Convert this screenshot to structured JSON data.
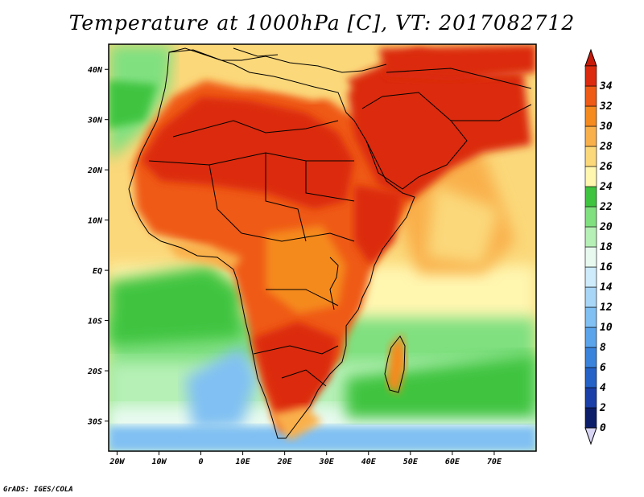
{
  "title": "Temperature at 1000hPa [C], VT: 2017082712",
  "credit": "GrADS: IGES/COLA",
  "axes": {
    "lon_labels": [
      {
        "value": -20,
        "label": "20W"
      },
      {
        "value": -10,
        "label": "10W"
      },
      {
        "value": 0,
        "label": "0"
      },
      {
        "value": 10,
        "label": "10E"
      },
      {
        "value": 20,
        "label": "20E"
      },
      {
        "value": 30,
        "label": "30E"
      },
      {
        "value": 40,
        "label": "40E"
      },
      {
        "value": 50,
        "label": "50E"
      },
      {
        "value": 60,
        "label": "60E"
      },
      {
        "value": 70,
        "label": "70E"
      }
    ],
    "lat_labels": [
      {
        "value": 40,
        "label": "40N"
      },
      {
        "value": 30,
        "label": "30N"
      },
      {
        "value": 20,
        "label": "20N"
      },
      {
        "value": 10,
        "label": "10N"
      },
      {
        "value": 0,
        "label": "EQ"
      },
      {
        "value": -10,
        "label": "10S"
      },
      {
        "value": -20,
        "label": "20S"
      },
      {
        "value": -30,
        "label": "30S"
      }
    ],
    "lon_range": [
      -22,
      80
    ],
    "lat_range": [
      -36,
      45
    ]
  },
  "colorbar": {
    "levels": [
      "0",
      "2",
      "4",
      "6",
      "8",
      "10",
      "12",
      "14",
      "16",
      "18",
      "20",
      "22",
      "24",
      "26",
      "28",
      "30",
      "32",
      "34"
    ],
    "colors": [
      "#0c1d6a",
      "#1a3fa8",
      "#2462c8",
      "#3a83dc",
      "#5aa4ec",
      "#80c0f3",
      "#a8d6f7",
      "#cdebfa",
      "#e8faf0",
      "#b6f0b6",
      "#80e080",
      "#3fc43f",
      "#fff6b0",
      "#fbd87a",
      "#f9b04b",
      "#f58a1f",
      "#ef5a15",
      "#db2a0e"
    ],
    "under_color": "#d8d4f4",
    "over_color": "#c81a0a"
  }
}
